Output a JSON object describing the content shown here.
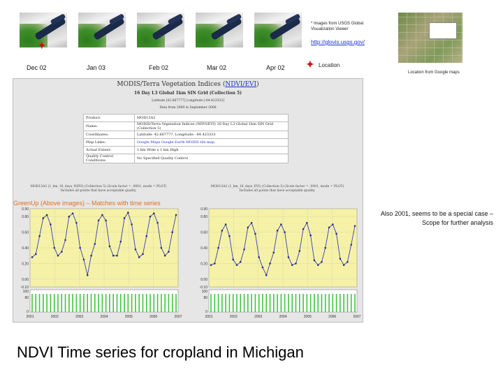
{
  "thumbnails": [
    {
      "label": "Dec 02"
    },
    {
      "label": "Jan 03"
    },
    {
      "label": "Feb 02"
    },
    {
      "label": "Mar 02"
    },
    {
      "label": "Apr 02"
    }
  ],
  "source_note": "* Images from USGS Global Visualization Viewer",
  "source_link": "http://glovis.usgs.gov/",
  "legend": {
    "marker_label": "Location",
    "marker_icon": "red-star-marker",
    "marker_color": "#d01010"
  },
  "map_caption": "Location from Google maps",
  "modis": {
    "title_prefix": "MODIS/Terra Vegetation Indices (",
    "title_link": "NDVI/EVI",
    "title_suffix": ")",
    "subtitle": "16 Day L3 Global 1km SIN Grid (Collection 5)",
    "coords_line": "Latitude [42.667777] Longitude [-84.423333]",
    "info_line": "Data from 2000 to September 2006",
    "table": [
      {
        "key": "Product:",
        "value": "MOD13A2"
      },
      {
        "key": "Name:",
        "value": "MODIS/Terra Vegetation Indices (NDVI/EVI) 16-Day L3 Global 1km SIN Grid (Collection 5)"
      },
      {
        "key": "Coordinates:",
        "value": "Latitude: 42.667777, Longitude: -84.423333"
      },
      {
        "key": "Map Links:",
        "value": "Google Maps   Google Earth   MODIS tile map"
      },
      {
        "key": "Actual Extent:",
        "value": "1 km Wide x 1 km High"
      },
      {
        "key": "Quality Control Conditions:",
        "value": "No Specified Quality Control"
      }
    ],
    "left_chart_header": "MOD13A2 (1_km_16_days_NDVI) (Collection 5) (Scale factor = .0001, mode = PLOT)",
    "left_chart_subheader": "Includes all points that have acceptable quality.",
    "right_chart_header": "MOD13A2 (1_km_16_days_EVI) (Collection 5) (Scale factor = .0001, mode = PLOT)",
    "right_chart_subheader": "Includes all points that have acceptable quality."
  },
  "greenup_note": "GreenUp (Above images) – Matches with time series",
  "side_note": "Also 2001, seems to be a special case – Scope for further analysis",
  "main_title": "NDVI Time series  for cropland in Michigan",
  "chart_data": [
    {
      "type": "line",
      "title": "",
      "x_ticks": [
        "2001",
        "2002",
        "2003",
        "2004",
        "2005",
        "2006",
        "2007"
      ],
      "y_ticks": [
        "0.90",
        "0.80",
        "0.60",
        "0.40",
        "0.20",
        "0.00",
        "-0.10"
      ],
      "qc_ticks": [
        "100",
        "80",
        "0"
      ],
      "series": [
        {
          "values": [
            0.28,
            0.32,
            0.55,
            0.78,
            0.82,
            0.7,
            0.4,
            0.3,
            0.35,
            0.5,
            0.8,
            0.84,
            0.72,
            0.4,
            0.25,
            0.05,
            0.3,
            0.45,
            0.75,
            0.82,
            0.75,
            0.42,
            0.3,
            0.3,
            0.48,
            0.78,
            0.85,
            0.7,
            0.38,
            0.28,
            0.32,
            0.55,
            0.8,
            0.84,
            0.72,
            0.4,
            0.3,
            0.35,
            0.6,
            0.82
          ]
        }
      ],
      "ylim": [
        -0.1,
        0.9
      ]
    },
    {
      "type": "line",
      "title": "",
      "x_ticks": [
        "2001",
        "2002",
        "2003",
        "2004",
        "2005",
        "2006",
        "2007"
      ],
      "y_ticks": [
        "0.90",
        "0.80",
        "0.60",
        "0.40",
        "0.20",
        "0.00",
        "-0.10"
      ],
      "qc_ticks": [
        "100",
        "80",
        "0"
      ],
      "series": [
        {
          "values": [
            0.18,
            0.2,
            0.4,
            0.62,
            0.7,
            0.55,
            0.25,
            0.18,
            0.22,
            0.38,
            0.66,
            0.72,
            0.58,
            0.28,
            0.15,
            0.05,
            0.2,
            0.34,
            0.62,
            0.7,
            0.6,
            0.28,
            0.18,
            0.2,
            0.36,
            0.64,
            0.72,
            0.56,
            0.24,
            0.18,
            0.22,
            0.4,
            0.66,
            0.7,
            0.58,
            0.26,
            0.18,
            0.22,
            0.44,
            0.68
          ]
        }
      ],
      "ylim": [
        -0.1,
        0.9
      ]
    }
  ],
  "colors": {
    "chart_bg": "#f5f2a8",
    "qc_bars": "#3ec43e",
    "series_line": "#3b3bb0",
    "link": "#1a2fd8",
    "greenup": "#e07020"
  }
}
